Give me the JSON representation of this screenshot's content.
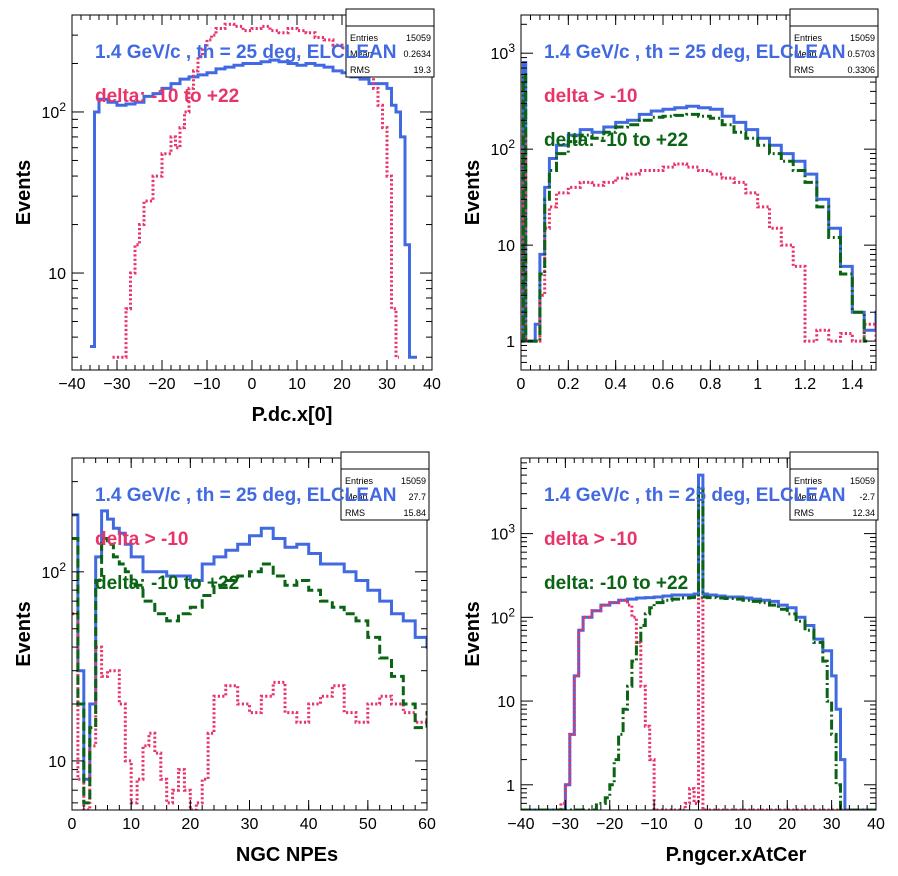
{
  "chart_data": [
    {
      "type": "line",
      "xlabel": "P.dc.x[0]",
      "ylabel": "Events",
      "xlim": [
        -40,
        40
      ],
      "ylim": [
        2.5,
        400
      ],
      "log_y": true,
      "xticks": [
        "-40",
        "-30",
        "-20",
        "-10",
        "0",
        "10",
        "20",
        "30",
        "40"
      ],
      "yticks": [
        "10",
        "10^2"
      ],
      "stats": {
        "labels": [
          "Entries",
          "Mean",
          "RMS"
        ],
        "values": [
          "15059",
          "0.2634",
          "19.3"
        ]
      },
      "annotations": [
        {
          "text": "1.4 GeV/c , th = 25 deg, ELCLEAN",
          "color": "#4169e1"
        },
        {
          "text": "delta: -10 to +22",
          "color": "#e8346a"
        }
      ],
      "series": [
        {
          "color": "#4169e1",
          "style": "solid",
          "x": [
            -36,
            -35,
            -34,
            -32,
            -30,
            -28,
            -26,
            -24,
            -22,
            -20,
            -18,
            -16,
            -14,
            -12,
            -10,
            -8,
            -6,
            -4,
            -2,
            0,
            2,
            4,
            6,
            8,
            10,
            12,
            14,
            16,
            18,
            20,
            22,
            24,
            26,
            28,
            30,
            31,
            32,
            33,
            34,
            35,
            36
          ],
          "y": [
            3.5,
            100,
            120,
            115,
            110,
            112,
            115,
            125,
            130,
            140,
            150,
            160,
            165,
            170,
            175,
            185,
            190,
            195,
            200,
            200,
            205,
            210,
            205,
            200,
            195,
            200,
            195,
            190,
            180,
            175,
            165,
            160,
            150,
            150,
            140,
            110,
            100,
            70,
            15,
            3,
            3
          ]
        },
        {
          "color": "#e8346a",
          "style": "dotted",
          "x": [
            -31,
            -29,
            -28,
            -27,
            -26,
            -25,
            -24,
            -22,
            -20,
            -18,
            -17,
            -16,
            -15,
            -14,
            -13,
            -12,
            -11,
            -10,
            -9,
            -8,
            -6,
            -4,
            -2,
            0,
            2,
            4,
            6,
            8,
            10,
            12,
            14,
            16,
            18,
            20,
            22,
            24,
            26,
            27,
            28,
            29,
            30,
            31,
            32
          ],
          "y": [
            3,
            3,
            6,
            10,
            15,
            20,
            28,
            40,
            55,
            70,
            60,
            80,
            100,
            140,
            180,
            220,
            250,
            280,
            300,
            330,
            350,
            340,
            320,
            330,
            340,
            320,
            310,
            330,
            320,
            310,
            290,
            280,
            260,
            250,
            230,
            200,
            170,
            140,
            110,
            80,
            40,
            6,
            3
          ]
        }
      ]
    },
    {
      "type": "line",
      "xlabel": "",
      "ylabel": "Events",
      "xlim": [
        0,
        1.5
      ],
      "ylim": [
        0.5,
        2500
      ],
      "log_y": true,
      "xticks": [
        "0",
        "0.2",
        "0.4",
        "0.6",
        "0.8",
        "1",
        "1.2",
        "1.4"
      ],
      "yticks": [
        "1",
        "10",
        "10^2",
        "10^3"
      ],
      "stats": {
        "labels": [
          "Entries",
          "Mean",
          "RMS"
        ],
        "values": [
          "15059",
          "0.5703",
          "0.3306"
        ]
      },
      "annotations": [
        {
          "text": "1.4 GeV/c , th = 25 deg, ELCLEAN",
          "color": "#4169e1"
        },
        {
          "text": "delta > -10",
          "color": "#e8346a"
        },
        {
          "text": "delta: -10 to +22",
          "color": "#0a6414"
        }
      ],
      "series": [
        {
          "color": "#4169e1",
          "style": "solid",
          "x": [
            0,
            0.01,
            0.02,
            0.04,
            0.06,
            0.08,
            0.1,
            0.12,
            0.15,
            0.2,
            0.25,
            0.3,
            0.35,
            0.4,
            0.45,
            0.5,
            0.55,
            0.6,
            0.65,
            0.7,
            0.75,
            0.8,
            0.85,
            0.9,
            0.95,
            1.0,
            1.05,
            1.1,
            1.15,
            1.2,
            1.25,
            1.3,
            1.35,
            1.4,
            1.45,
            1.5
          ],
          "y": [
            1,
            800,
            1,
            1,
            1.5,
            8,
            40,
            80,
            110,
            140,
            160,
            150,
            170,
            190,
            200,
            230,
            250,
            260,
            270,
            280,
            270,
            260,
            220,
            190,
            160,
            130,
            110,
            90,
            75,
            55,
            30,
            15,
            6,
            2,
            1.3,
            2
          ]
        },
        {
          "color": "#e8346a",
          "style": "dotted",
          "x": [
            0,
            0.01,
            0.02,
            0.06,
            0.08,
            0.1,
            0.12,
            0.15,
            0.2,
            0.25,
            0.3,
            0.35,
            0.4,
            0.45,
            0.5,
            0.55,
            0.6,
            0.65,
            0.7,
            0.75,
            0.8,
            0.85,
            0.9,
            0.95,
            1.0,
            1.05,
            1.1,
            1.15,
            1.2,
            1.25,
            1.3,
            1.35,
            1.4,
            1.45,
            1.5
          ],
          "y": [
            1,
            150,
            1,
            1,
            3,
            15,
            25,
            35,
            40,
            45,
            42,
            45,
            50,
            55,
            60,
            60,
            65,
            70,
            65,
            60,
            55,
            50,
            45,
            35,
            25,
            15,
            10,
            6,
            1,
            1.3,
            1,
            1.2,
            1,
            1.5,
            1
          ]
        },
        {
          "color": "#0a6414",
          "style": "dashdot",
          "x": [
            0,
            0.01,
            0.02,
            0.04,
            0.06,
            0.08,
            0.1,
            0.12,
            0.15,
            0.2,
            0.25,
            0.3,
            0.35,
            0.4,
            0.45,
            0.5,
            0.55,
            0.6,
            0.65,
            0.7,
            0.75,
            0.8,
            0.85,
            0.9,
            0.95,
            1.0,
            1.05,
            1.1,
            1.15,
            1.2,
            1.25,
            1.3,
            1.35,
            1.4,
            1.45
          ],
          "y": [
            1,
            600,
            1,
            1,
            1,
            5,
            30,
            60,
            90,
            120,
            140,
            130,
            150,
            170,
            180,
            200,
            215,
            220,
            225,
            230,
            220,
            210,
            180,
            150,
            130,
            110,
            90,
            75,
            60,
            45,
            25,
            12,
            5,
            2,
            1
          ]
        }
      ]
    },
    {
      "type": "line",
      "xlabel": "NGC NPEs",
      "ylabel": "Events",
      "xlim": [
        0,
        60
      ],
      "ylim": [
        5.5,
        400
      ],
      "log_y": true,
      "xticks": [
        "0",
        "10",
        "20",
        "30",
        "40",
        "50",
        "60"
      ],
      "yticks": [
        "10",
        "10^2"
      ],
      "stats": {
        "labels": [
          "Entries",
          "Mean",
          "RMS"
        ],
        "values": [
          "15059",
          "27.7",
          "15.84"
        ]
      },
      "annotations": [
        {
          "text": "1.4 GeV/c , th = 25 deg, ELCLEAN",
          "color": "#4169e1"
        },
        {
          "text": "delta > -10",
          "color": "#e8346a"
        },
        {
          "text": "delta: -10 to +22",
          "color": "#0a6414"
        }
      ],
      "series": [
        {
          "color": "#4169e1",
          "style": "solid",
          "x": [
            0,
            1,
            2,
            3,
            4,
            5,
            6,
            7,
            8,
            9,
            10,
            12,
            14,
            16,
            18,
            20,
            22,
            24,
            26,
            28,
            30,
            32,
            34,
            36,
            38,
            40,
            42,
            44,
            46,
            48,
            50,
            52,
            54,
            56,
            58,
            60
          ],
          "y": [
            200,
            30,
            8,
            20,
            120,
            210,
            190,
            170,
            160,
            140,
            120,
            100,
            100,
            95,
            95,
            90,
            110,
            120,
            130,
            140,
            155,
            170,
            150,
            135,
            140,
            125,
            110,
            110,
            100,
            90,
            80,
            70,
            60,
            55,
            45,
            40
          ]
        },
        {
          "color": "#e8346a",
          "style": "dotted",
          "x": [
            0,
            1,
            2,
            3,
            4,
            5,
            6,
            7,
            8,
            9,
            10,
            11,
            12,
            13,
            14,
            15,
            16,
            17,
            18,
            19,
            20,
            21,
            22,
            23,
            24,
            26,
            28,
            30,
            32,
            34,
            36,
            38,
            40,
            42,
            44,
            46,
            48,
            50,
            52,
            54,
            56,
            58,
            60
          ],
          "y": [
            60,
            8,
            5,
            12,
            40,
            28,
            30,
            30,
            20,
            10,
            6,
            8,
            12,
            14,
            11,
            8,
            6,
            7,
            9,
            7,
            5,
            6,
            8,
            14,
            22,
            25,
            20,
            18,
            22,
            26,
            18,
            16,
            20,
            22,
            25,
            18,
            16,
            20,
            22,
            20,
            18,
            16,
            18
          ]
        },
        {
          "color": "#0a6414",
          "style": "dashed",
          "x": [
            0,
            1,
            2,
            3,
            4,
            5,
            6,
            7,
            8,
            9,
            10,
            12,
            14,
            16,
            18,
            20,
            22,
            24,
            26,
            28,
            30,
            32,
            34,
            36,
            38,
            40,
            42,
            44,
            46,
            48,
            50,
            52,
            54,
            56,
            58,
            60
          ],
          "y": [
            150,
            20,
            6,
            15,
            90,
            150,
            140,
            120,
            110,
            100,
            85,
            70,
            60,
            55,
            60,
            65,
            75,
            85,
            90,
            95,
            100,
            110,
            95,
            85,
            90,
            80,
            70,
            65,
            60,
            55,
            45,
            35,
            28,
            20,
            15,
            18
          ]
        }
      ]
    },
    {
      "type": "line",
      "xlabel": "P.ngcer.xAtCer",
      "ylabel": "Events",
      "xlim": [
        -40,
        40
      ],
      "ylim": [
        0.5,
        8000
      ],
      "log_y": true,
      "xticks": [
        "-40",
        "-30",
        "-20",
        "-10",
        "0",
        "10",
        "20",
        "30",
        "40"
      ],
      "yticks": [
        "1",
        "10",
        "10^2",
        "10^3"
      ],
      "stats": {
        "labels": [
          "Entries",
          "Mean",
          "RMS"
        ],
        "values": [
          "15059",
          "-2.7",
          "12.34"
        ]
      },
      "annotations": [
        {
          "text": "1.4 GeV/c , th = 25 deg, ELCLEAN",
          "color": "#4169e1"
        },
        {
          "text": "delta > -10",
          "color": "#e8346a"
        },
        {
          "text": "delta: -10 to +22",
          "color": "#0a6414"
        }
      ],
      "series": [
        {
          "color": "#4169e1",
          "style": "solid",
          "x": [
            -40,
            -31,
            -30,
            -29,
            -28,
            -27,
            -26,
            -24,
            -22,
            -20,
            -18,
            -16,
            -14,
            -12,
            -10,
            -8,
            -6,
            -4,
            -2,
            -1,
            0,
            1,
            2,
            4,
            6,
            8,
            10,
            12,
            14,
            16,
            18,
            20,
            22,
            24,
            26,
            28,
            30,
            31,
            32,
            33,
            40
          ],
          "y": [
            0.5,
            0.5,
            1,
            4,
            20,
            70,
            100,
            120,
            140,
            150,
            160,
            165,
            170,
            172,
            175,
            180,
            185,
            185,
            185,
            190,
            5000,
            190,
            185,
            180,
            175,
            175,
            170,
            165,
            160,
            155,
            140,
            130,
            100,
            80,
            55,
            40,
            20,
            8,
            2,
            0.5,
            0.5
          ]
        },
        {
          "color": "#e8346a",
          "style": "dotted",
          "x": [
            -32,
            -31,
            -30,
            -29,
            -28,
            -27,
            -26,
            -24,
            -22,
            -20,
            -18,
            -16,
            -15,
            -14,
            -13,
            -12,
            -11,
            -10,
            -8,
            -6,
            -4,
            -3,
            -2,
            -1,
            0,
            1,
            2,
            40
          ],
          "y": [
            0.5,
            0.6,
            1,
            4,
            20,
            70,
            100,
            120,
            140,
            150,
            160,
            140,
            100,
            50,
            15,
            5,
            2,
            0.5,
            0.5,
            0.5,
            0.5,
            0.6,
            0.9,
            0.6,
            170,
            0.5,
            0.5,
            0.5
          ]
        },
        {
          "color": "#0a6414",
          "style": "dashdot",
          "x": [
            -40,
            -26,
            -24,
            -23,
            -22,
            -21,
            -20,
            -19,
            -18,
            -17,
            -16,
            -15,
            -14,
            -13,
            -12,
            -11,
            -10,
            -8,
            -6,
            -4,
            -2,
            -1,
            0,
            1,
            2,
            4,
            6,
            8,
            10,
            12,
            14,
            16,
            18,
            20,
            22,
            24,
            26,
            28,
            29,
            30,
            31,
            32,
            40
          ],
          "y": [
            0.5,
            0.5,
            0.5,
            0.6,
            0.6,
            0.7,
            1,
            2,
            4,
            8,
            15,
            30,
            50,
            80,
            110,
            130,
            150,
            160,
            165,
            170,
            172,
            175,
            3500,
            175,
            172,
            170,
            168,
            165,
            160,
            155,
            150,
            140,
            125,
            110,
            90,
            70,
            50,
            30,
            10,
            4,
            1,
            0.5,
            0.5
          ]
        }
      ]
    }
  ]
}
